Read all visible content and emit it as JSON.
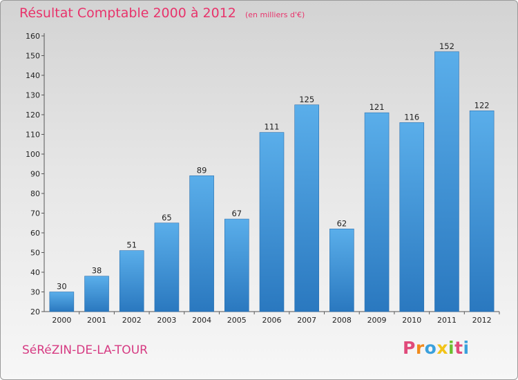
{
  "title": "Résultat Comptable 2000 à 2012",
  "subtitle": "(en milliers d'€)",
  "town": "SéRéZIN-DE-LA-TOUR",
  "logo": {
    "letters": [
      "P",
      "r",
      "o",
      "x",
      "i",
      "t",
      "i"
    ],
    "colors": [
      "#e04a7a",
      "#f08a1c",
      "#3aa0dc",
      "#f2c318",
      "#6cbf2e",
      "#e04a7a",
      "#3aa0dc"
    ]
  },
  "colors": {
    "bar_top": "#5aaeea",
    "bar_bottom": "#2a78bf",
    "accent": "#e8336b"
  },
  "chart_data": {
    "type": "bar",
    "title": "Résultat Comptable 2000 à 2012",
    "ylabel": "en milliers d'€",
    "xlabel": "",
    "categories": [
      "2000",
      "2001",
      "2002",
      "2003",
      "2004",
      "2005",
      "2006",
      "2007",
      "2008",
      "2009",
      "2010",
      "2011",
      "2012"
    ],
    "values": [
      30,
      38,
      51,
      65,
      89,
      67,
      111,
      125,
      62,
      121,
      116,
      152,
      122
    ],
    "ylim": [
      20,
      160
    ],
    "yticks": [
      20,
      30,
      40,
      50,
      60,
      70,
      80,
      90,
      100,
      110,
      120,
      130,
      140,
      150,
      160
    ],
    "grid": false
  }
}
